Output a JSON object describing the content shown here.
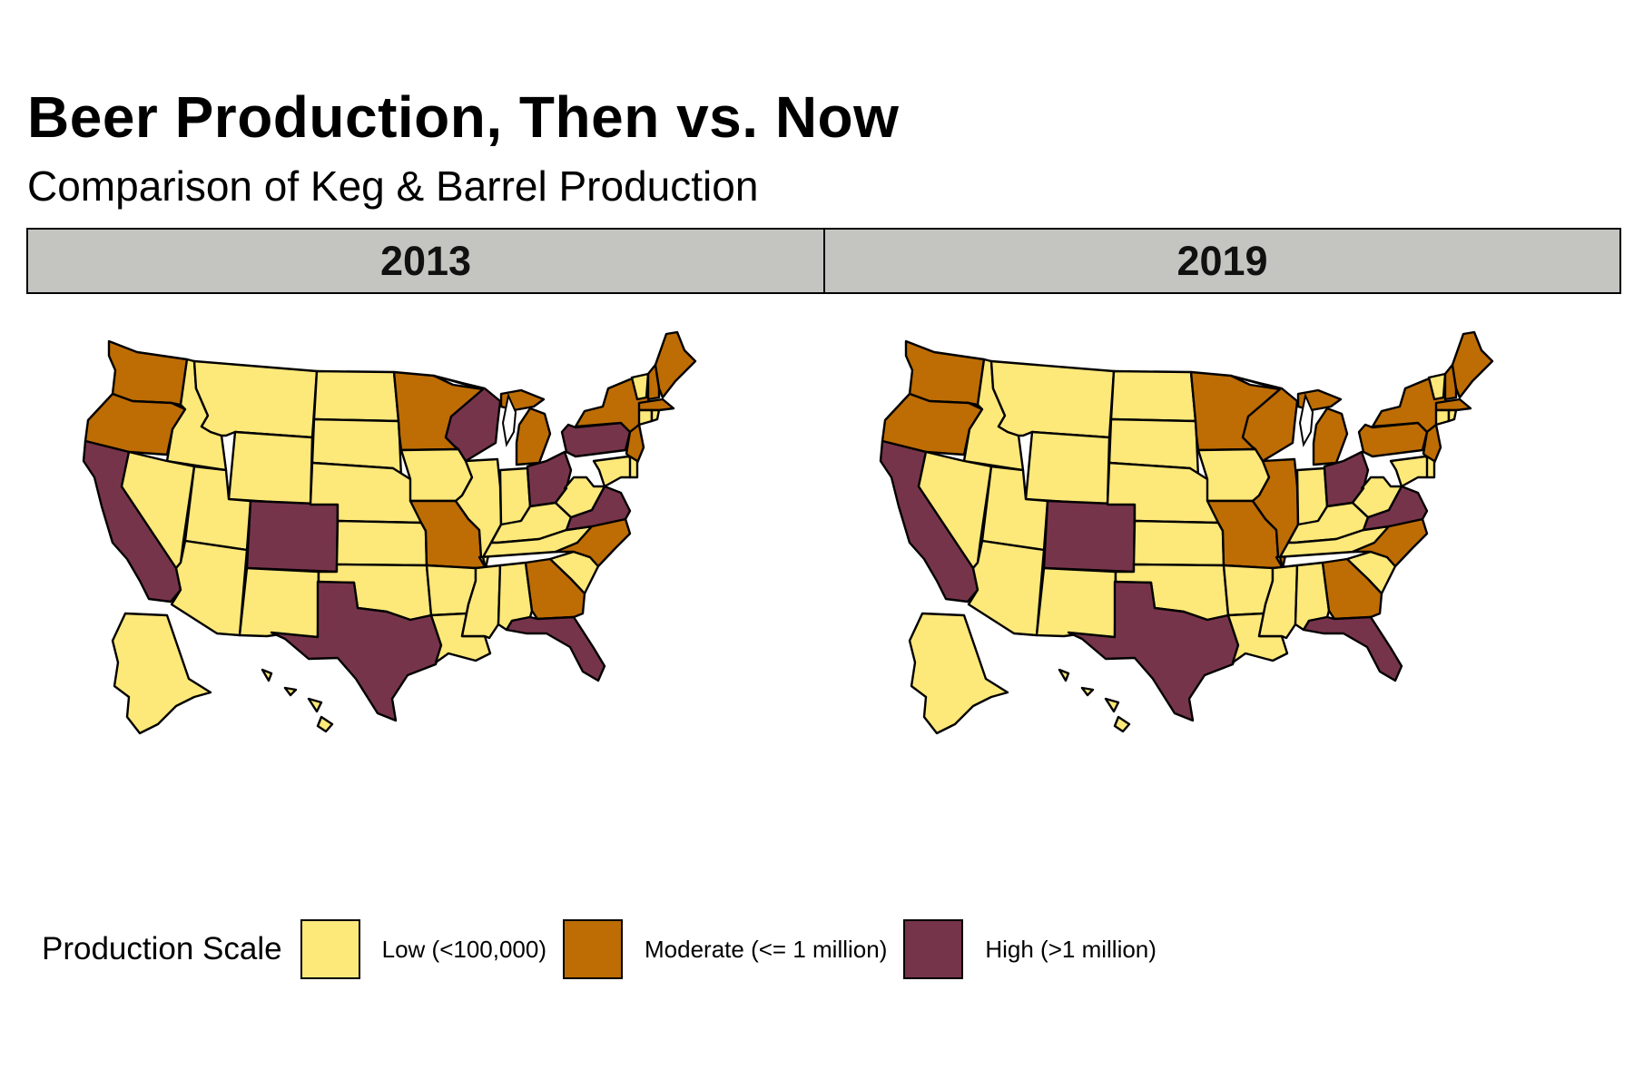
{
  "title": "Beer Production, Then vs. Now",
  "subtitle": "Comparison of Keg & Barrel Production",
  "colors": {
    "Low": "#fde87a",
    "Moderate": "#bd6d04",
    "High": "#76344b"
  },
  "legend": {
    "title": "Production Scale",
    "items": [
      {
        "key": "Low",
        "label": "Low (<100,000)"
      },
      {
        "key": "Moderate",
        "label": "Moderate (<= 1 million)"
      },
      {
        "key": "High",
        "label": "High (>1 million)"
      }
    ]
  },
  "panels": [
    {
      "label": "2013",
      "states": {
        "WA": "Moderate",
        "OR": "Moderate",
        "CA": "High",
        "ID": "Low",
        "NV": "Low",
        "MT": "Low",
        "WY": "Low",
        "UT": "Low",
        "AZ": "Low",
        "CO": "High",
        "NM": "Low",
        "ND": "Low",
        "SD": "Low",
        "NE": "Low",
        "KS": "Low",
        "OK": "Low",
        "TX": "High",
        "MN": "Moderate",
        "IA": "Low",
        "MO": "Moderate",
        "AR": "Low",
        "LA": "Low",
        "WI": "High",
        "IL": "Low",
        "MI": "Moderate",
        "IN": "Low",
        "OH": "High",
        "KY": "Low",
        "TN": "Low",
        "MS": "Low",
        "AL": "Low",
        "GA": "Moderate",
        "FL": "High",
        "SC": "Low",
        "NC": "Moderate",
        "VA": "High",
        "WV": "Low",
        "PA": "High",
        "NY": "Moderate",
        "VT": "Low",
        "NH": "Moderate",
        "ME": "Moderate",
        "MA": "Moderate",
        "NJ": "Moderate",
        "MD": "Low",
        "DE": "Low",
        "CT": "Low",
        "RI": "Low",
        "AK": "Low",
        "HI": "Low"
      }
    },
    {
      "label": "2019",
      "states": {
        "WA": "Moderate",
        "OR": "Moderate",
        "CA": "High",
        "ID": "Low",
        "NV": "Low",
        "MT": "Low",
        "WY": "Low",
        "UT": "Low",
        "AZ": "Low",
        "CO": "High",
        "NM": "Low",
        "ND": "Low",
        "SD": "Low",
        "NE": "Low",
        "KS": "Low",
        "OK": "Low",
        "TX": "High",
        "MN": "Moderate",
        "IA": "Low",
        "MO": "Moderate",
        "AR": "Low",
        "LA": "Low",
        "WI": "Moderate",
        "IL": "Moderate",
        "MI": "Moderate",
        "IN": "Low",
        "OH": "High",
        "KY": "Low",
        "TN": "Low",
        "MS": "Low",
        "AL": "Low",
        "GA": "Moderate",
        "FL": "High",
        "SC": "Low",
        "NC": "Moderate",
        "VA": "High",
        "WV": "Low",
        "PA": "Moderate",
        "NY": "Moderate",
        "VT": "Low",
        "NH": "Moderate",
        "ME": "Moderate",
        "MA": "Moderate",
        "NJ": "Moderate",
        "MD": "Low",
        "DE": "Low",
        "CT": "Low",
        "RI": "Low",
        "AK": "Low",
        "HI": "Low"
      }
    }
  ]
}
